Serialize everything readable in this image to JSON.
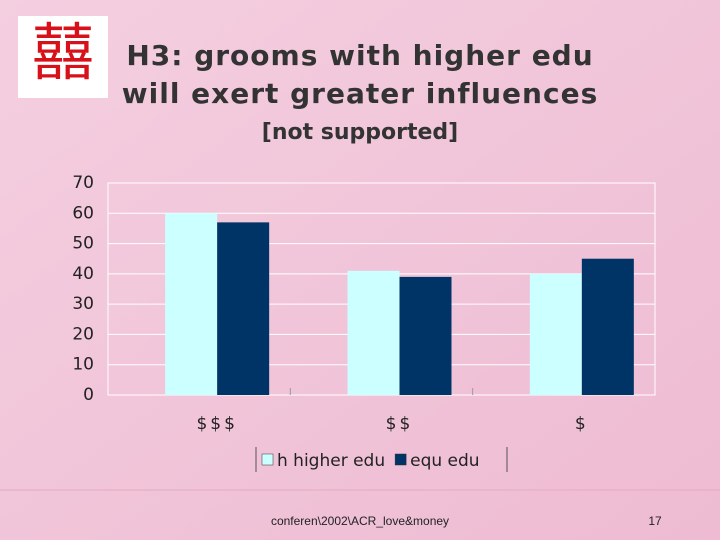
{
  "slide": {
    "logo": "囍",
    "title_lines": [
      "H3: grooms with higher edu",
      "will exert greater influences"
    ],
    "subtitle": "[not supported]",
    "footer": "conferen\\2002\\ACR_love&money",
    "page_number": "17"
  },
  "chart_data": {
    "type": "bar",
    "categories": [
      "$$$",
      "$$",
      "$"
    ],
    "series": [
      {
        "name": "h higher edu",
        "color": "#ccffff",
        "values": [
          60,
          41,
          40
        ]
      },
      {
        "name": "equ edu",
        "color": "#003366",
        "values": [
          57,
          39,
          45
        ]
      }
    ],
    "ylim": [
      0,
      70
    ],
    "yticks": [
      0,
      10,
      20,
      30,
      40,
      50,
      60,
      70
    ],
    "grid": true,
    "legend": "bottom"
  }
}
